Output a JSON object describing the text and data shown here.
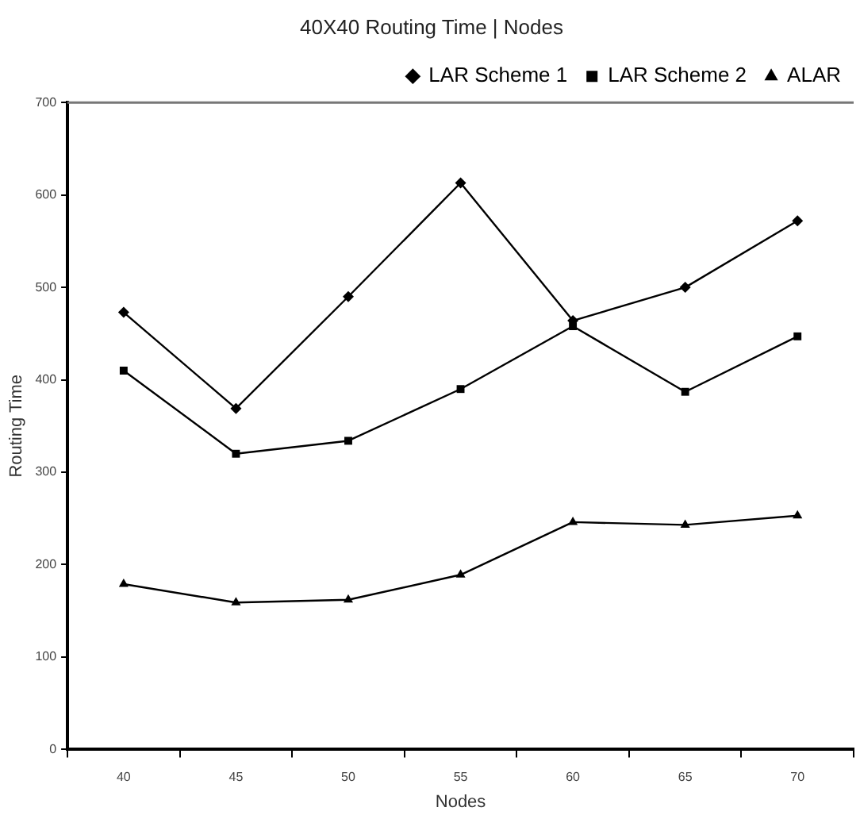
{
  "chart_data": {
    "type": "line",
    "title": "40X40 Routing Time | Nodes",
    "xlabel": "Nodes",
    "ylabel": "Routing Time",
    "categories": [
      "40",
      "45",
      "50",
      "55",
      "60",
      "65",
      "70"
    ],
    "series": [
      {
        "name": "LAR Scheme 1",
        "color": "#000000",
        "marker": "diamond",
        "values": [
          473,
          369,
          490,
          613,
          464,
          500,
          572
        ]
      },
      {
        "name": "LAR Scheme 2",
        "color": "#000000",
        "marker": "square",
        "values": [
          410,
          320,
          334,
          390,
          458,
          387,
          447
        ]
      },
      {
        "name": "ALAR",
        "color": "#000000",
        "marker": "triangle",
        "values": [
          179,
          159,
          162,
          189,
          246,
          243,
          253
        ]
      }
    ],
    "ylim": [
      0,
      700
    ],
    "yticks": [
      0,
      100,
      200,
      300,
      400,
      500,
      600,
      700
    ],
    "grid": false,
    "legend": "top right",
    "line_style": "solid"
  }
}
